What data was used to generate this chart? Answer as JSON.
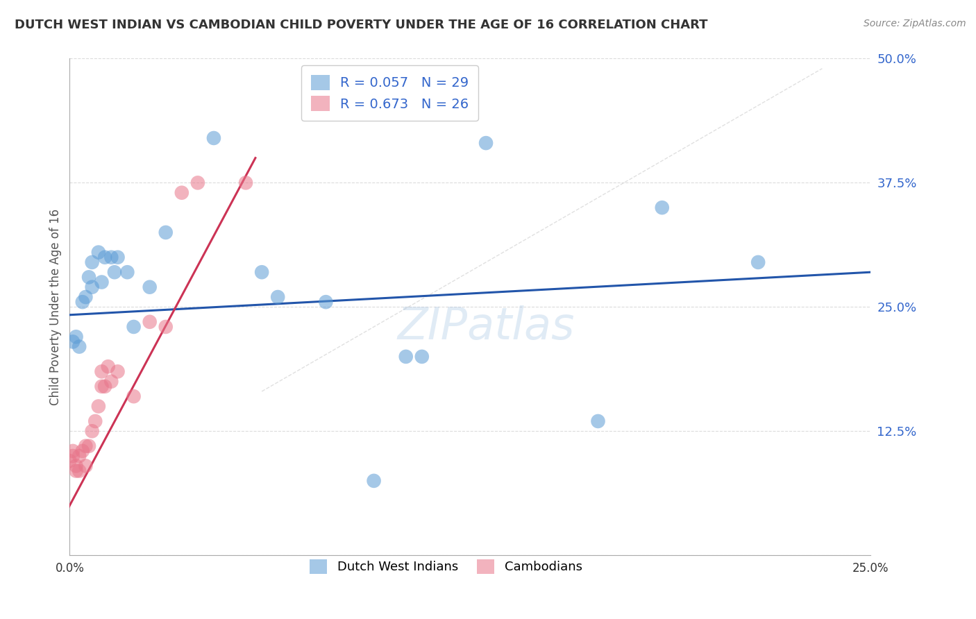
{
  "title": "DUTCH WEST INDIAN VS CAMBODIAN CHILD POVERTY UNDER THE AGE OF 16 CORRELATION CHART",
  "source": "Source: ZipAtlas.com",
  "ylabel": "Child Poverty Under the Age of 16",
  "y_ticks": [
    0.0,
    0.125,
    0.25,
    0.375,
    0.5
  ],
  "y_tick_labels": [
    "",
    "12.5%",
    "25.0%",
    "37.5%",
    "50.0%"
  ],
  "xlim": [
    0.0,
    0.25
  ],
  "ylim": [
    0.0,
    0.5
  ],
  "legend_entries": [
    {
      "color_face": "#aec6f0",
      "R": "0.057",
      "N": "29"
    },
    {
      "color_face": "#f5b8c4",
      "R": "0.673",
      "N": "26"
    }
  ],
  "blue_color": "#5b9bd5",
  "pink_color": "#e8758a",
  "blue_scatter": [
    [
      0.001,
      0.215
    ],
    [
      0.002,
      0.22
    ],
    [
      0.003,
      0.21
    ],
    [
      0.004,
      0.255
    ],
    [
      0.005,
      0.26
    ],
    [
      0.006,
      0.28
    ],
    [
      0.007,
      0.27
    ],
    [
      0.007,
      0.295
    ],
    [
      0.009,
      0.305
    ],
    [
      0.01,
      0.275
    ],
    [
      0.011,
      0.3
    ],
    [
      0.013,
      0.3
    ],
    [
      0.014,
      0.285
    ],
    [
      0.015,
      0.3
    ],
    [
      0.018,
      0.285
    ],
    [
      0.02,
      0.23
    ],
    [
      0.025,
      0.27
    ],
    [
      0.03,
      0.325
    ],
    [
      0.045,
      0.42
    ],
    [
      0.06,
      0.285
    ],
    [
      0.065,
      0.26
    ],
    [
      0.08,
      0.255
    ],
    [
      0.095,
      0.075
    ],
    [
      0.105,
      0.2
    ],
    [
      0.11,
      0.2
    ],
    [
      0.13,
      0.415
    ],
    [
      0.165,
      0.135
    ],
    [
      0.185,
      0.35
    ],
    [
      0.215,
      0.295
    ]
  ],
  "pink_scatter": [
    [
      0.0,
      0.095
    ],
    [
      0.001,
      0.1
    ],
    [
      0.001,
      0.105
    ],
    [
      0.002,
      0.085
    ],
    [
      0.002,
      0.09
    ],
    [
      0.003,
      0.085
    ],
    [
      0.003,
      0.1
    ],
    [
      0.004,
      0.105
    ],
    [
      0.005,
      0.09
    ],
    [
      0.005,
      0.11
    ],
    [
      0.006,
      0.11
    ],
    [
      0.007,
      0.125
    ],
    [
      0.008,
      0.135
    ],
    [
      0.009,
      0.15
    ],
    [
      0.01,
      0.17
    ],
    [
      0.01,
      0.185
    ],
    [
      0.011,
      0.17
    ],
    [
      0.012,
      0.19
    ],
    [
      0.013,
      0.175
    ],
    [
      0.015,
      0.185
    ],
    [
      0.02,
      0.16
    ],
    [
      0.025,
      0.235
    ],
    [
      0.03,
      0.23
    ],
    [
      0.035,
      0.365
    ],
    [
      0.04,
      0.375
    ],
    [
      0.055,
      0.375
    ]
  ],
  "blue_line_x": [
    0.0,
    0.25
  ],
  "blue_line_y": [
    0.242,
    0.285
  ],
  "pink_line_x": [
    -0.005,
    0.058
  ],
  "pink_line_y": [
    0.02,
    0.4
  ],
  "diag_line_x": [
    0.06,
    0.235
  ],
  "diag_line_y": [
    0.165,
    0.49
  ],
  "watermark": "ZIPatlas",
  "grid_color": "#cccccc",
  "grid_style": "--",
  "title_color": "#333333",
  "stat_color": "#3366cc",
  "blue_line_color": "#2255aa",
  "pink_line_color": "#cc3355"
}
